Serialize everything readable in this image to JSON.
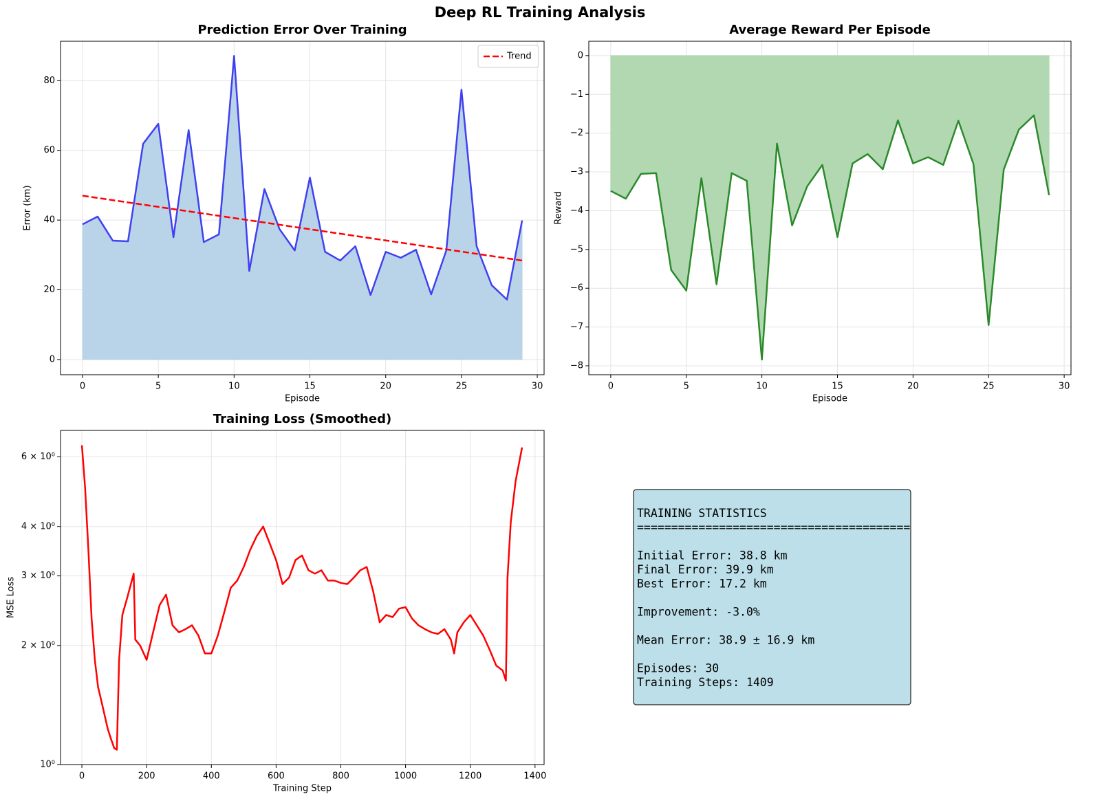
{
  "title": "Deep RL Training Analysis",
  "chart_data": [
    {
      "type": "line",
      "title": "Prediction Error Over Training",
      "xlabel": "Episode",
      "ylabel": "Error (km)",
      "x": [
        0,
        1,
        2,
        3,
        4,
        5,
        6,
        7,
        8,
        9,
        10,
        11,
        12,
        13,
        14,
        15,
        16,
        17,
        18,
        19,
        20,
        21,
        22,
        23,
        24,
        25,
        26,
        27,
        28,
        29
      ],
      "xlim": [
        -1.45,
        30.45
      ],
      "xticks": [
        0,
        5,
        10,
        15,
        20,
        25,
        30
      ],
      "ylim": [
        -4.35,
        91.3
      ],
      "yticks": [
        0,
        20,
        40,
        60,
        80
      ],
      "grid": true,
      "legend": "upper right",
      "series": [
        {
          "color": "#4040f0",
          "fill": "#b9d4e8",
          "values": [
            38.8,
            41.0,
            34.1,
            33.9,
            61.9,
            67.6,
            35.1,
            65.8,
            33.7,
            35.9,
            87.1,
            25.4,
            48.9,
            37.4,
            31.3,
            52.2,
            30.9,
            28.4,
            32.5,
            18.5,
            30.9,
            29.2,
            31.5,
            18.7,
            31.3,
            77.4,
            32.5,
            21.3,
            17.2,
            39.9
          ]
        },
        {
          "name": "Trend",
          "color": "#ff0000",
          "dashed": true,
          "x": [
            0,
            29
          ],
          "values": [
            47.0,
            28.4
          ]
        }
      ]
    },
    {
      "type": "line",
      "title": "Average Reward Per Episode",
      "xlabel": "Episode",
      "ylabel": "Reward",
      "x": [
        0,
        1,
        2,
        3,
        4,
        5,
        6,
        7,
        8,
        9,
        10,
        11,
        12,
        13,
        14,
        15,
        16,
        17,
        18,
        19,
        20,
        21,
        22,
        23,
        24,
        25,
        26,
        27,
        28,
        29
      ],
      "xlim": [
        -1.45,
        30.45
      ],
      "xticks": [
        0,
        5,
        10,
        15,
        20,
        25,
        30
      ],
      "ylim": [
        -8.23,
        0.37
      ],
      "yticks": [
        0,
        {
          "value": -1,
          "label": "−1"
        },
        {
          "value": -2,
          "label": "−2"
        },
        {
          "value": -3,
          "label": "−3"
        },
        {
          "value": -4,
          "label": "−4"
        },
        {
          "value": -5,
          "label": "−5"
        },
        {
          "value": -6,
          "label": "−6"
        },
        {
          "value": -7,
          "label": "−7"
        },
        {
          "value": -8,
          "label": "−8"
        }
      ],
      "grid": true,
      "series": [
        {
          "color": "#2a8a2a",
          "fill": "#b2d8b2",
          "values": [
            -3.49,
            -3.69,
            -3.05,
            -3.03,
            -5.53,
            -6.06,
            -3.16,
            -5.9,
            -3.03,
            -3.23,
            -7.84,
            -2.27,
            -4.38,
            -3.37,
            -2.82,
            -4.68,
            -2.78,
            -2.54,
            -2.93,
            -1.67,
            -2.78,
            -2.62,
            -2.82,
            -1.68,
            -2.8,
            -6.95,
            -2.94,
            -1.91,
            -1.54,
            -3.6
          ]
        }
      ]
    },
    {
      "type": "line",
      "title": "Training Loss (Smoothed)",
      "xlabel": "Training Step",
      "ylabel": "MSE Loss",
      "x": [
        0,
        10,
        20,
        30,
        40,
        50,
        60,
        80,
        90,
        100,
        108,
        115,
        125,
        140,
        160,
        165,
        180,
        200,
        220,
        240,
        260,
        280,
        300,
        320,
        340,
        360,
        380,
        400,
        420,
        440,
        460,
        480,
        500,
        520,
        540,
        560,
        580,
        600,
        620,
        640,
        660,
        680,
        700,
        720,
        740,
        760,
        780,
        800,
        820,
        840,
        860,
        880,
        900,
        920,
        940,
        960,
        980,
        1000,
        1020,
        1040,
        1060,
        1080,
        1100,
        1120,
        1140,
        1150,
        1160,
        1180,
        1200,
        1220,
        1240,
        1260,
        1280,
        1300,
        1310,
        1315,
        1325,
        1340,
        1360
      ],
      "xlim": [
        -66,
        1428
      ],
      "xticks": [
        0,
        200,
        400,
        600,
        800,
        1000,
        1200,
        1400
      ],
      "log_y": true,
      "ylim": [
        1,
        7.0
      ],
      "yticks": [
        {
          "value": 1,
          "label": "10⁰"
        },
        {
          "value": 2,
          "label": "2 × 10⁰"
        },
        {
          "value": 3,
          "label": "3 × 10⁰"
        },
        {
          "value": 4,
          "label": "4 × 10⁰"
        },
        {
          "value": 6,
          "label": "6 × 10⁰"
        }
      ],
      "grid": true,
      "series": [
        {
          "color": "#ff0000",
          "values": [
            6.42,
            5.0,
            3.5,
            2.34,
            1.84,
            1.57,
            1.45,
            1.23,
            1.16,
            1.1,
            1.09,
            1.84,
            2.39,
            2.64,
            3.04,
            2.07,
            2.0,
            1.84,
            2.16,
            2.53,
            2.69,
            2.25,
            2.16,
            2.2,
            2.25,
            2.12,
            1.91,
            1.91,
            2.12,
            2.43,
            2.8,
            2.92,
            3.16,
            3.49,
            3.78,
            4.0,
            3.63,
            3.29,
            2.86,
            2.97,
            3.29,
            3.38,
            3.1,
            3.04,
            3.1,
            2.92,
            2.92,
            2.88,
            2.86,
            2.97,
            3.1,
            3.16,
            2.74,
            2.29,
            2.39,
            2.36,
            2.48,
            2.5,
            2.34,
            2.25,
            2.2,
            2.16,
            2.14,
            2.2,
            2.07,
            1.91,
            2.16,
            2.29,
            2.39,
            2.25,
            2.12,
            1.95,
            1.78,
            1.73,
            1.63,
            2.97,
            4.1,
            5.21,
            6.34
          ]
        }
      ]
    }
  ],
  "stats_box": {
    "paragraphs": [
      [
        "TRAINING STATISTICS",
        "========================================"
      ],
      [
        "Initial Error: 38.8 km",
        "Final Error: 39.9 km",
        "Best Error: 17.2 km"
      ],
      [
        "Improvement: -3.0%"
      ],
      [
        "Mean Error: 38.9 ± 16.9 km"
      ],
      [
        "Episodes: 30",
        "Training Steps: 1409"
      ]
    ]
  }
}
